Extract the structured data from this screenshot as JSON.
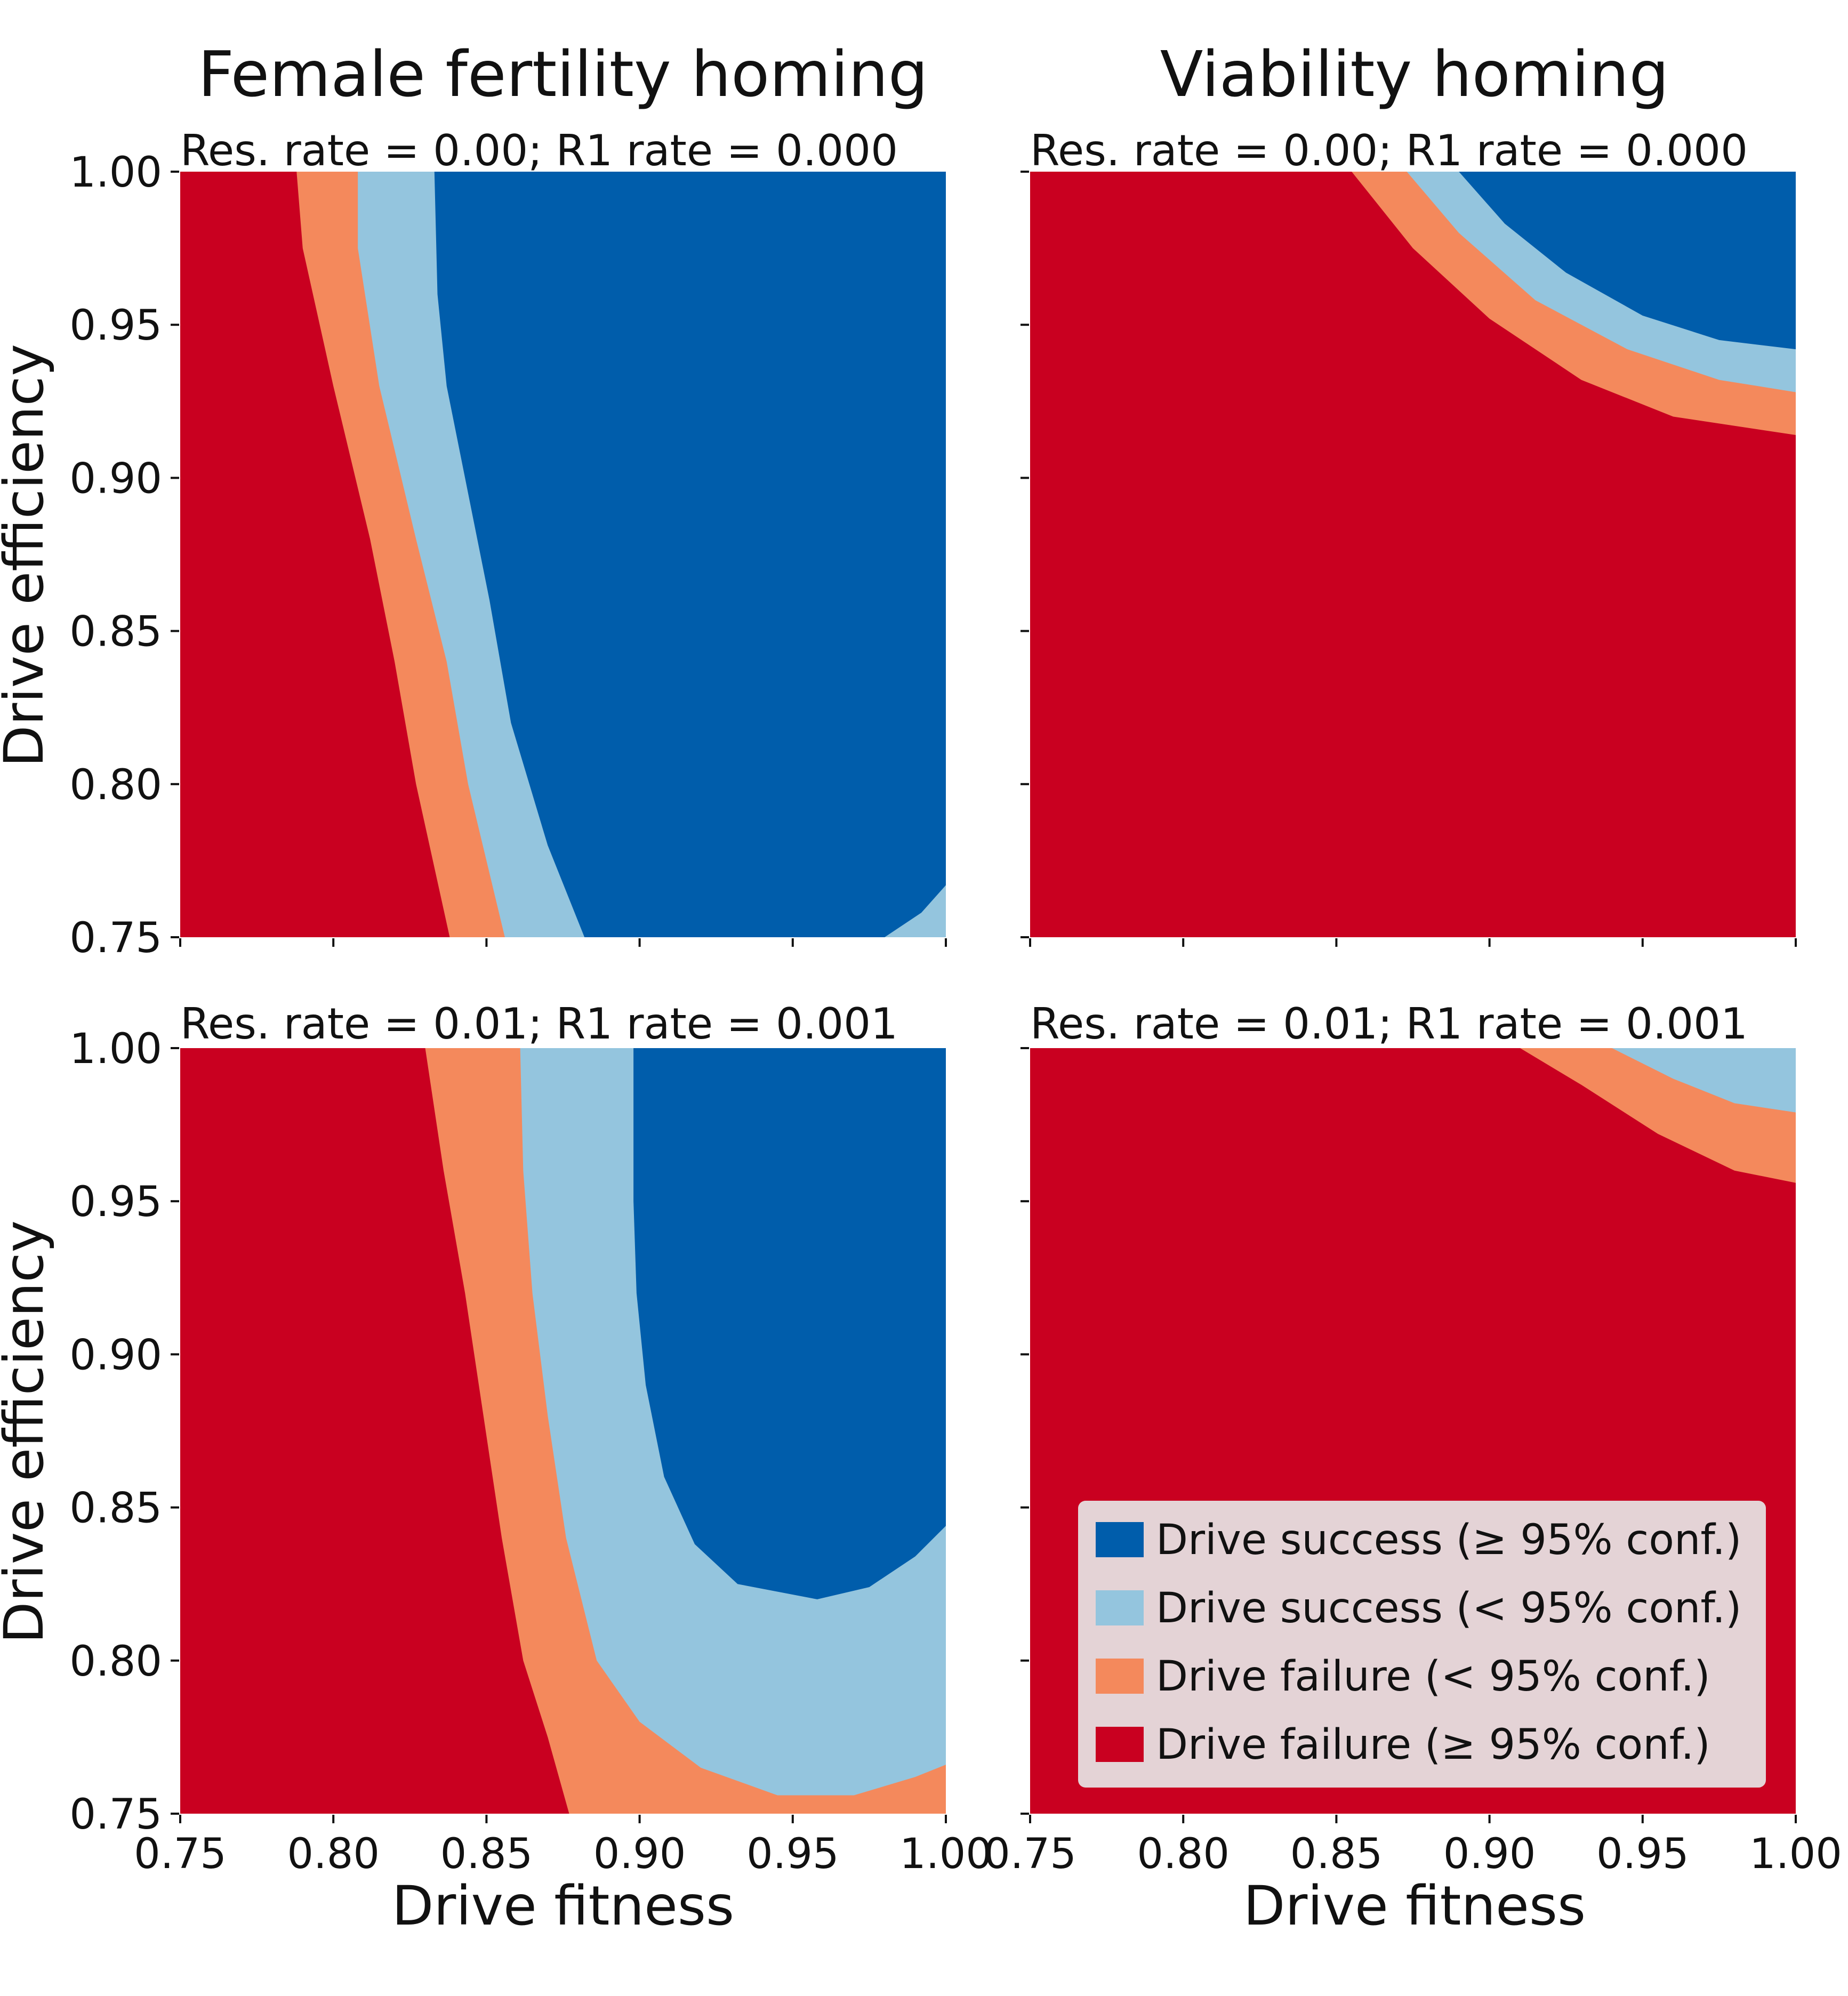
{
  "colors": {
    "success_high": "#005DAB",
    "success_low": "#94C5DE",
    "failure_low": "#F4895C",
    "failure_high": "#C90020",
    "legend_bg": "#E4D3D6"
  },
  "column_titles": [
    "Female fertility homing",
    "Viability homing"
  ],
  "axes": {
    "xlabel": "Drive fitness",
    "ylabel": "Drive efficiency",
    "x_ticks": [
      "0.75",
      "0.80",
      "0.85",
      "0.90",
      "0.95",
      "1.00"
    ],
    "y_ticks": [
      "0.75",
      "0.80",
      "0.85",
      "0.90",
      "0.95",
      "1.00"
    ]
  },
  "legend": {
    "position": "lower-right",
    "entries": [
      {
        "label": "Drive success (≥ 95% conf.)",
        "color": "#005DAB"
      },
      {
        "label": "Drive success (< 95% conf.)",
        "color": "#94C5DE"
      },
      {
        "label": "Drive failure (< 95% conf.)",
        "color": "#F4895C"
      },
      {
        "label": "Drive failure (≥ 95% conf.)",
        "color": "#C90020"
      }
    ]
  },
  "chart_data": [
    {
      "type": "heatmap",
      "title": "Female fertility homing",
      "subtitle": "Res. rate = 0.00;  R1 rate = 0.000",
      "xlabel": "",
      "ylabel": "Drive efficiency",
      "xlim": [
        0.75,
        1.0
      ],
      "ylim": [
        0.75,
        1.0
      ],
      "x_ticks_labeled": false,
      "y_ticks_labeled": true,
      "boundaries": [
        {
          "between": [
            "Drive failure (≥ 95% conf.)",
            "Drive failure (< 95% conf.)"
          ],
          "points": [
            [
              0.788,
              1.0
            ],
            [
              0.79,
              0.975
            ],
            [
              0.8,
              0.93
            ],
            [
              0.812,
              0.88
            ],
            [
              0.82,
              0.84
            ],
            [
              0.827,
              0.8
            ],
            [
              0.838,
              0.75
            ]
          ]
        },
        {
          "between": [
            "Drive failure (< 95% conf.)",
            "Drive success (< 95% conf.)"
          ],
          "points": [
            [
              0.808,
              1.0
            ],
            [
              0.808,
              0.975
            ],
            [
              0.815,
              0.93
            ],
            [
              0.827,
              0.88
            ],
            [
              0.837,
              0.84
            ],
            [
              0.844,
              0.8
            ],
            [
              0.856,
              0.75
            ]
          ]
        },
        {
          "between": [
            "Drive success (< 95% conf.)",
            "Drive success (≥ 95% conf.)"
          ],
          "points": [
            [
              0.833,
              1.0
            ],
            [
              0.834,
              0.96
            ],
            [
              0.837,
              0.93
            ],
            [
              0.843,
              0.9
            ],
            [
              0.851,
              0.86
            ],
            [
              0.858,
              0.82
            ],
            [
              0.87,
              0.78
            ],
            [
              0.882,
              0.75
            ]
          ]
        },
        {
          "between": [
            "Drive success (≥ 95% conf.)",
            "Drive success (< 95% conf.)"
          ],
          "points": [
            [
              0.98,
              0.75
            ],
            [
              0.992,
              0.758
            ],
            [
              1.0,
              0.767
            ]
          ]
        }
      ]
    },
    {
      "type": "heatmap",
      "title": "Viability homing",
      "subtitle": "Res. rate = 0.00;  R1 rate = 0.000",
      "xlabel": "",
      "ylabel": "",
      "xlim": [
        0.75,
        1.0
      ],
      "ylim": [
        0.75,
        1.0
      ],
      "x_ticks_labeled": false,
      "y_ticks_labeled": false,
      "boundaries": [
        {
          "between": [
            "Drive failure (≥ 95% conf.)",
            "Drive failure (< 95% conf.)"
          ],
          "points": [
            [
              0.855,
              1.0
            ],
            [
              0.875,
              0.975
            ],
            [
              0.9,
              0.952
            ],
            [
              0.93,
              0.932
            ],
            [
              0.96,
              0.92
            ],
            [
              1.0,
              0.914
            ]
          ]
        },
        {
          "between": [
            "Drive failure (< 95% conf.)",
            "Drive success (< 95% conf.)"
          ],
          "points": [
            [
              0.873,
              1.0
            ],
            [
              0.89,
              0.98
            ],
            [
              0.915,
              0.958
            ],
            [
              0.945,
              0.942
            ],
            [
              0.975,
              0.932
            ],
            [
              1.0,
              0.928
            ]
          ]
        },
        {
          "between": [
            "Drive success (< 95% conf.)",
            "Drive success (≥ 95% conf.)"
          ],
          "points": [
            [
              0.89,
              1.0
            ],
            [
              0.905,
              0.983
            ],
            [
              0.925,
              0.967
            ],
            [
              0.95,
              0.953
            ],
            [
              0.975,
              0.945
            ],
            [
              1.0,
              0.942
            ]
          ]
        }
      ]
    },
    {
      "type": "heatmap",
      "title": "",
      "subtitle": "Res. rate = 0.01;  R1 rate = 0.001",
      "xlabel": "Drive fitness",
      "ylabel": "Drive efficiency",
      "xlim": [
        0.75,
        1.0
      ],
      "ylim": [
        0.75,
        1.0
      ],
      "x_ticks_labeled": true,
      "y_ticks_labeled": true,
      "boundaries": [
        {
          "between": [
            "Drive failure (≥ 95% conf.)",
            "Drive failure (< 95% conf.)"
          ],
          "points": [
            [
              0.83,
              1.0
            ],
            [
              0.836,
              0.96
            ],
            [
              0.843,
              0.92
            ],
            [
              0.849,
              0.88
            ],
            [
              0.855,
              0.84
            ],
            [
              0.862,
              0.8
            ],
            [
              0.87,
              0.775
            ],
            [
              0.877,
              0.75
            ]
          ]
        },
        {
          "between": [
            "Drive failure (< 95% conf.)",
            "Drive success (< 95% conf.)"
          ],
          "points": [
            [
              0.861,
              1.0
            ],
            [
              0.862,
              0.96
            ],
            [
              0.865,
              0.92
            ],
            [
              0.87,
              0.88
            ],
            [
              0.876,
              0.84
            ],
            [
              0.886,
              0.8
            ],
            [
              0.9,
              0.78
            ],
            [
              0.92,
              0.765
            ],
            [
              0.945,
              0.756
            ],
            [
              0.97,
              0.756
            ],
            [
              0.99,
              0.762
            ],
            [
              1.0,
              0.766
            ]
          ]
        },
        {
          "between": [
            "Drive success (< 95% conf.)",
            "Drive success (≥ 95% conf.)"
          ],
          "points": [
            [
              0.898,
              1.0
            ],
            [
              0.898,
              0.95
            ],
            [
              0.899,
              0.92
            ],
            [
              0.902,
              0.89
            ],
            [
              0.908,
              0.86
            ],
            [
              0.918,
              0.838
            ],
            [
              0.932,
              0.825
            ],
            [
              0.958,
              0.82
            ],
            [
              0.975,
              0.824
            ],
            [
              0.99,
              0.834
            ],
            [
              1.0,
              0.844
            ]
          ]
        }
      ]
    },
    {
      "type": "heatmap",
      "title": "",
      "subtitle": "Res. rate = 0.01;  R1 rate = 0.001",
      "xlabel": "Drive fitness",
      "ylabel": "",
      "xlim": [
        0.75,
        1.0
      ],
      "ylim": [
        0.75,
        1.0
      ],
      "x_ticks_labeled": true,
      "y_ticks_labeled": false,
      "boundaries": [
        {
          "between": [
            "Drive failure (≥ 95% conf.)",
            "Drive failure (< 95% conf.)"
          ],
          "points": [
            [
              0.91,
              1.0
            ],
            [
              0.93,
              0.988
            ],
            [
              0.955,
              0.972
            ],
            [
              0.98,
              0.96
            ],
            [
              1.0,
              0.956
            ]
          ]
        },
        {
          "between": [
            "Drive failure (< 95% conf.)",
            "Drive success (< 95% conf.)"
          ],
          "points": [
            [
              0.94,
              1.0
            ],
            [
              0.96,
              0.99
            ],
            [
              0.98,
              0.982
            ],
            [
              1.0,
              0.979
            ]
          ]
        }
      ]
    }
  ]
}
